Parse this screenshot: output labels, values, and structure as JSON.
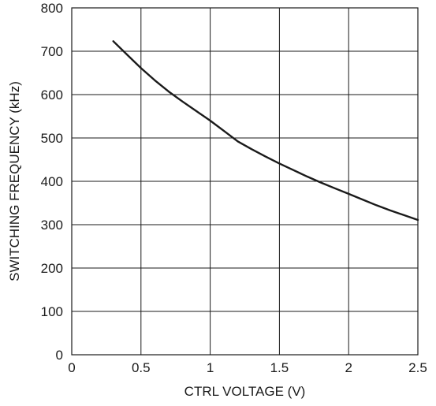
{
  "chart_data": {
    "type": "line",
    "title": "",
    "xlabel": "CTRL VOLTAGE (V)",
    "ylabel": "SWITCHING FREQUENCY (kHz)",
    "xlim": [
      0,
      2.5
    ],
    "ylim": [
      0,
      800
    ],
    "x_ticks": [
      0,
      0.5,
      1,
      1.5,
      2,
      2.5
    ],
    "y_ticks": [
      0,
      100,
      200,
      300,
      400,
      500,
      600,
      700,
      800
    ],
    "x_tick_labels": [
      "0",
      "0.5",
      "1",
      "1.5",
      "2",
      "2.5"
    ],
    "y_tick_labels": [
      "0",
      "100",
      "200",
      "300",
      "400",
      "500",
      "600",
      "700",
      "800"
    ],
    "grid": true,
    "legend": "none",
    "series": [
      {
        "x": [
          0.3,
          0.4,
          0.5,
          0.6,
          0.7,
          0.8,
          0.9,
          1.0,
          1.1,
          1.2,
          1.3,
          1.4,
          1.5,
          1.6,
          1.7,
          1.8,
          1.9,
          2.0,
          2.1,
          2.2,
          2.3,
          2.4,
          2.5
        ],
        "y": [
          723,
          692,
          661,
          633,
          607,
          584,
          562,
          540,
          516,
          492,
          474,
          457,
          441,
          426,
          411,
          397,
          384,
          371,
          358,
          345,
          333,
          322,
          311
        ]
      }
    ],
    "colors": {
      "line": "#1a1a1a",
      "grid": "#1a1a1a",
      "axis": "#1a1a1a"
    }
  }
}
